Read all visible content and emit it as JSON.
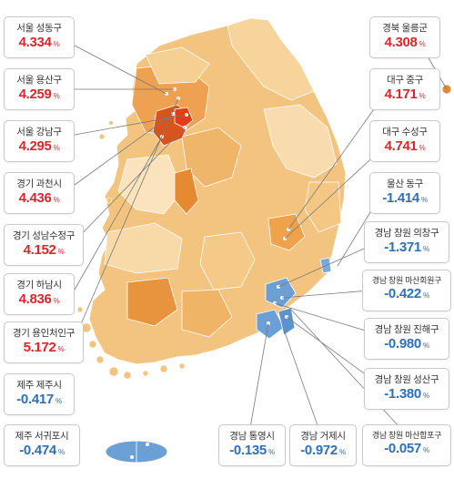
{
  "colors": {
    "increase": "#e0242a",
    "decrease": "#2f6fb6",
    "map_low": "#fbe3bb",
    "map_mid": "#f2bd73",
    "map_high": "#e58a30",
    "map_peak": "#d9541d",
    "map_blue": "#6b9fd6",
    "border": "#ffffff",
    "callout_line": "#7a7a7a"
  },
  "labels": {
    "l1": {
      "name": "서울 성동구",
      "value": "4.334",
      "unit": "%",
      "direction": "up"
    },
    "l2": {
      "name": "서울 용산구",
      "value": "4.259",
      "unit": "%",
      "direction": "up"
    },
    "l3": {
      "name": "서울 강남구",
      "value": "4.295",
      "unit": "%",
      "direction": "up"
    },
    "l4": {
      "name": "경기 과천시",
      "value": "4.436",
      "unit": "%",
      "direction": "up"
    },
    "l5": {
      "name": "경기 성남수정구",
      "value": "4.152",
      "unit": "%",
      "direction": "up"
    },
    "l6": {
      "name": "경기 하남시",
      "value": "4.836",
      "unit": "%",
      "direction": "up"
    },
    "l7": {
      "name": "경기 용인처인구",
      "value": "5.172",
      "unit": "%",
      "direction": "up"
    },
    "l8": {
      "name": "제주 제주시",
      "value": "-0.417",
      "unit": "%",
      "direction": "down"
    },
    "l9": {
      "name": "제주 서귀포시",
      "value": "-0.474",
      "unit": "%",
      "direction": "down"
    },
    "r1": {
      "name": "경북 울릉군",
      "value": "4.308",
      "unit": "%",
      "direction": "up"
    },
    "r2": {
      "name": "대구 중구",
      "value": "4.171",
      "unit": "%",
      "direction": "up"
    },
    "r3": {
      "name": "대구 수성구",
      "value": "4.741",
      "unit": "%",
      "direction": "up"
    },
    "r4": {
      "name": "울산 동구",
      "value": "-1.414",
      "unit": "%",
      "direction": "down"
    },
    "r5": {
      "name": "경남 창원 의창구",
      "value": "-1.371",
      "unit": "%",
      "direction": "down"
    },
    "r6": {
      "name": "경남 창원 마산회원구",
      "value": "-0.422",
      "unit": "%",
      "direction": "down"
    },
    "r7": {
      "name": "경남 창원 진해구",
      "value": "-0.980",
      "unit": "%",
      "direction": "down"
    },
    "r8": {
      "name": "경남 창원 성산구",
      "value": "-1.380",
      "unit": "%",
      "direction": "down"
    },
    "b1": {
      "name": "경남 통영시",
      "value": "-0.135",
      "unit": "%",
      "direction": "down"
    },
    "b2": {
      "name": "경남 거제시",
      "value": "-0.972",
      "unit": "%",
      "direction": "down"
    },
    "b3": {
      "name": "경남 창원 마산합포구",
      "value": "-0.057",
      "unit": "%",
      "direction": "down"
    }
  }
}
